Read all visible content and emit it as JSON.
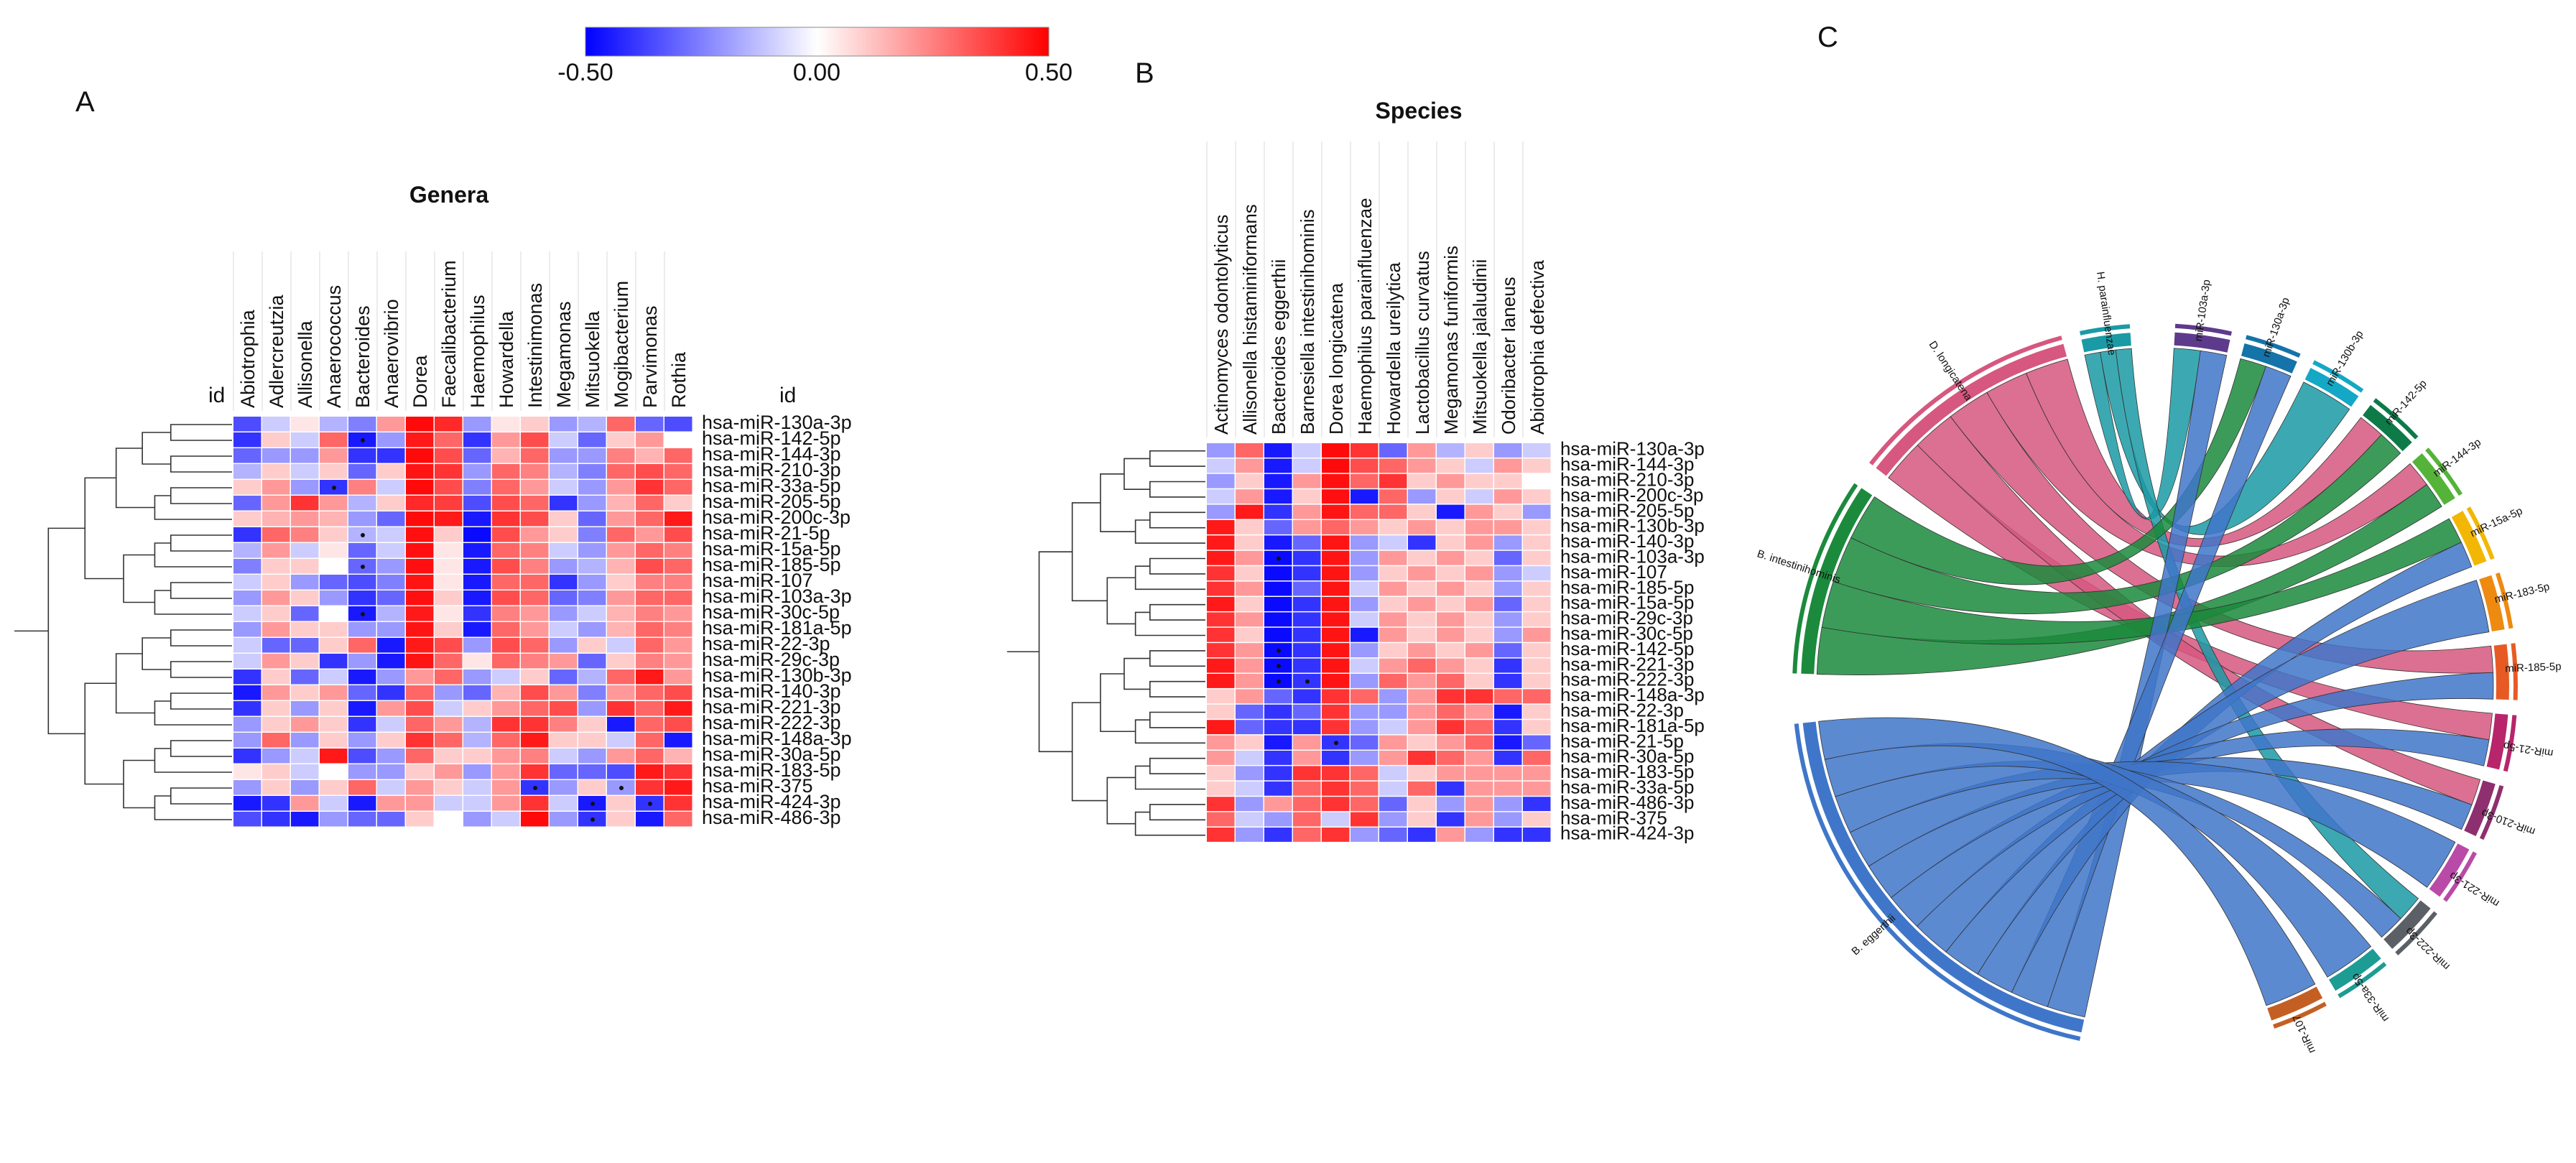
{
  "panels": {
    "a": "A",
    "b": "B",
    "c": "C"
  },
  "colorbar": {
    "min_label": "-0.50",
    "mid_label": "0.00",
    "max_label": "0.50",
    "low_color": "#0000ff",
    "mid_color": "#ffffff",
    "high_color": "#ff0000"
  },
  "chart_data": [
    {
      "type": "heatmap",
      "title": "Genera",
      "corner_label": "id",
      "right_corner_label": "id",
      "value_range": [
        -0.5,
        0.5
      ],
      "columns": [
        "Abiotrophia",
        "Adlercreutzia",
        "Allisonella",
        "Anaerococcus",
        "Bacteroides",
        "Anaerovibrio",
        "Dorea",
        "Faecalibacterium",
        "Haemophilus",
        "Howardella",
        "Intestinimonas",
        "Megamonas",
        "Mitsuokella",
        "Mogibacterium",
        "Parvimonas",
        "Rothia"
      ],
      "rows": [
        "hsa-miR-130a-3p",
        "hsa-miR-142-5p",
        "hsa-miR-144-3p",
        "hsa-miR-210-3p",
        "hsa-miR-33a-5p",
        "hsa-miR-205-5p",
        "hsa-miR-200c-3p",
        "hsa-miR-21-5p",
        "hsa-miR-15a-5p",
        "hsa-miR-185-5p",
        "hsa-miR-107",
        "hsa-miR-103a-3p",
        "hsa-miR-30c-5p",
        "hsa-miR-181a-5p",
        "hsa-miR-22-3p",
        "hsa-miR-29c-3p",
        "hsa-miR-130b-3p",
        "hsa-miR-140-3p",
        "hsa-miR-221-3p",
        "hsa-miR-222-3p",
        "hsa-miR-148a-3p",
        "hsa-miR-30a-5p",
        "hsa-miR-183-5p",
        "hsa-miR-375",
        "hsa-miR-424-3p",
        "hsa-miR-486-3p"
      ],
      "values": [
        [
          -0.35,
          -0.1,
          0.05,
          -0.15,
          -0.25,
          0.2,
          0.48,
          0.42,
          -0.2,
          0.05,
          0.1,
          -0.2,
          -0.15,
          0.3,
          -0.3,
          -0.35
        ],
        [
          -0.4,
          0.1,
          -0.1,
          0.3,
          -0.45,
          -0.2,
          0.45,
          0.3,
          -0.4,
          0.2,
          0.35,
          -0.1,
          -0.3,
          0.1,
          0.2,
          0.0
        ],
        [
          -0.3,
          -0.2,
          -0.2,
          0.2,
          -0.4,
          -0.4,
          0.48,
          0.35,
          -0.3,
          0.15,
          0.3,
          -0.2,
          -0.2,
          0.25,
          0.15,
          0.3
        ],
        [
          -0.15,
          0.1,
          -0.1,
          0.1,
          -0.3,
          0.1,
          0.46,
          0.4,
          -0.2,
          0.3,
          0.25,
          -0.15,
          -0.25,
          0.3,
          0.35,
          0.3
        ],
        [
          0.1,
          0.2,
          -0.2,
          -0.4,
          0.25,
          -0.1,
          0.48,
          0.35,
          -0.25,
          0.3,
          0.2,
          -0.1,
          -0.2,
          0.2,
          0.4,
          0.3
        ],
        [
          -0.3,
          0.2,
          0.4,
          0.2,
          -0.15,
          0.1,
          0.42,
          0.38,
          -0.35,
          0.35,
          0.3,
          -0.4,
          -0.2,
          0.15,
          0.3,
          0.1
        ],
        [
          0.1,
          0.15,
          0.2,
          0.15,
          -0.2,
          -0.3,
          0.48,
          0.45,
          -0.45,
          0.4,
          0.35,
          0.1,
          -0.3,
          0.2,
          0.3,
          0.45
        ],
        [
          -0.4,
          0.3,
          0.25,
          0.1,
          -0.15,
          -0.1,
          0.47,
          0.1,
          -0.48,
          0.35,
          0.2,
          0.1,
          -0.25,
          0.3,
          0.2,
          0.35
        ],
        [
          -0.15,
          0.2,
          -0.1,
          0.05,
          -0.3,
          -0.1,
          0.47,
          0.05,
          -0.45,
          0.3,
          0.25,
          -0.1,
          -0.2,
          0.2,
          0.3,
          0.25
        ],
        [
          -0.25,
          0.1,
          0.1,
          0.0,
          -0.3,
          -0.2,
          0.47,
          0.05,
          -0.45,
          0.35,
          0.25,
          -0.2,
          -0.15,
          0.15,
          0.35,
          0.3
        ],
        [
          -0.1,
          0.1,
          -0.2,
          -0.3,
          -0.35,
          -0.25,
          0.46,
          0.05,
          -0.45,
          0.3,
          0.3,
          -0.4,
          -0.2,
          0.1,
          0.25,
          0.25
        ],
        [
          -0.2,
          0.2,
          0.1,
          -0.2,
          -0.4,
          -0.3,
          0.47,
          0.1,
          -0.45,
          0.35,
          0.3,
          -0.3,
          -0.25,
          0.2,
          0.3,
          0.3
        ],
        [
          -0.1,
          0.1,
          -0.3,
          0.0,
          -0.45,
          -0.15,
          0.45,
          0.05,
          -0.4,
          0.25,
          0.2,
          -0.2,
          -0.1,
          0.15,
          0.25,
          0.2
        ],
        [
          -0.2,
          0.2,
          0.1,
          0.1,
          -0.2,
          -0.2,
          0.46,
          0.1,
          -0.45,
          0.3,
          0.2,
          -0.1,
          -0.2,
          0.15,
          0.3,
          0.25
        ],
        [
          -0.1,
          -0.3,
          -0.3,
          0.1,
          0.3,
          -0.45,
          0.45,
          0.35,
          -0.2,
          0.35,
          0.3,
          -0.2,
          0.1,
          -0.1,
          0.3,
          0.2
        ],
        [
          -0.1,
          0.2,
          0.1,
          -0.4,
          -0.2,
          -0.45,
          0.46,
          0.3,
          0.05,
          0.3,
          0.25,
          0.2,
          -0.3,
          0.1,
          0.25,
          0.2
        ],
        [
          -0.4,
          0.1,
          -0.3,
          -0.1,
          -0.45,
          -0.2,
          0.2,
          0.3,
          -0.2,
          -0.1,
          0.1,
          -0.3,
          -0.15,
          0.3,
          0.45,
          0.2
        ],
        [
          -0.45,
          0.2,
          0.1,
          0.2,
          -0.3,
          -0.4,
          0.3,
          -0.2,
          -0.3,
          0.15,
          0.35,
          0.2,
          -0.25,
          0.2,
          0.3,
          0.35
        ],
        [
          -0.4,
          0.1,
          -0.2,
          0.1,
          -0.45,
          0.2,
          0.35,
          -0.1,
          0.1,
          0.2,
          0.3,
          0.35,
          -0.2,
          0.4,
          0.3,
          0.45
        ],
        [
          -0.2,
          0.1,
          0.2,
          0.1,
          -0.4,
          -0.1,
          0.3,
          0.2,
          -0.15,
          0.4,
          0.4,
          0.25,
          0.1,
          -0.45,
          0.3,
          0.35
        ],
        [
          -0.2,
          0.3,
          -0.2,
          0.1,
          -0.2,
          0.1,
          0.4,
          0.3,
          -0.15,
          0.3,
          0.45,
          0.1,
          0.1,
          -0.1,
          0.3,
          -0.45
        ],
        [
          -0.4,
          -0.2,
          -0.1,
          0.45,
          -0.35,
          -0.2,
          0.3,
          0.1,
          0.1,
          0.2,
          0.25,
          -0.1,
          -0.2,
          0.2,
          0.3,
          0.15
        ],
        [
          0.05,
          0.1,
          -0.1,
          0.0,
          -0.2,
          -0.2,
          0.1,
          0.2,
          -0.2,
          0.2,
          0.4,
          -0.3,
          -0.3,
          -0.35,
          0.45,
          0.4
        ],
        [
          -0.2,
          0.1,
          -0.2,
          0.1,
          0.3,
          -0.1,
          0.2,
          0.1,
          -0.1,
          0.2,
          -0.4,
          -0.2,
          0.1,
          -0.2,
          0.4,
          0.45
        ],
        [
          -0.45,
          -0.4,
          0.2,
          -0.1,
          -0.45,
          0.2,
          0.2,
          -0.1,
          -0.1,
          0.2,
          0.4,
          -0.1,
          -0.45,
          0.1,
          -0.4,
          0.4
        ],
        [
          -0.35,
          -0.4,
          -0.45,
          -0.2,
          -0.3,
          -0.3,
          0.1,
          0.0,
          -0.2,
          -0.1,
          0.48,
          -0.2,
          -0.4,
          0.1,
          -0.45,
          0.3
        ]
      ],
      "significant": [
        [
          1,
          4
        ],
        [
          4,
          3
        ],
        [
          7,
          4
        ],
        [
          9,
          4
        ],
        [
          12,
          4
        ],
        [
          23,
          10
        ],
        [
          23,
          13
        ],
        [
          24,
          12
        ],
        [
          24,
          14
        ],
        [
          25,
          12
        ]
      ]
    },
    {
      "type": "heatmap",
      "title": "Species",
      "value_range": [
        -0.5,
        0.5
      ],
      "columns": [
        "Actinomyces odontolyticus",
        "Allisonella histaminiformans",
        "Bacteroides eggerthii",
        "Barnesiella intestinihominis",
        "Dorea longicatena",
        "Haemophilus parainfluenzae",
        "Howardella ureilytica",
        "Lactobacillus curvatus",
        "Megamonas funiformis",
        "Mitsuokella jalaludinii",
        "Odoribacter laneus",
        "Abiotrophia defectiva"
      ],
      "rows": [
        "hsa-miR-130a-3p",
        "hsa-miR-144-3p",
        "hsa-miR-210-3p",
        "hsa-miR-200c-3p",
        "hsa-miR-205-5p",
        "hsa-miR-130b-3p",
        "hsa-miR-140-3p",
        "hsa-miR-103a-3p",
        "hsa-miR-107",
        "hsa-miR-185-5p",
        "hsa-miR-15a-5p",
        "hsa-miR-29c-3p",
        "hsa-miR-30c-5p",
        "hsa-miR-142-5p",
        "hsa-miR-221-3p",
        "hsa-miR-222-3p",
        "hsa-miR-148a-3p",
        "hsa-miR-22-3p",
        "hsa-miR-181a-5p",
        "hsa-miR-21-5p",
        "hsa-miR-30a-5p",
        "hsa-miR-183-5p",
        "hsa-miR-33a-5p",
        "hsa-miR-486-3p",
        "hsa-miR-375",
        "hsa-miR-424-3p"
      ],
      "values": [
        [
          -0.2,
          0.3,
          -0.45,
          -0.1,
          0.48,
          0.4,
          -0.3,
          0.2,
          -0.15,
          0.1,
          -0.2,
          -0.1
        ],
        [
          -0.1,
          0.2,
          -0.45,
          -0.1,
          0.48,
          0.35,
          0.3,
          0.2,
          0.1,
          -0.1,
          0.2,
          0.1
        ],
        [
          -0.2,
          0.1,
          -0.45,
          0.2,
          0.47,
          0.3,
          0.4,
          0.1,
          0.2,
          0.1,
          0.1,
          0.0
        ],
        [
          -0.1,
          0.2,
          -0.45,
          0.1,
          0.47,
          -0.45,
          0.3,
          -0.2,
          0.1,
          -0.1,
          0.2,
          0.1
        ],
        [
          -0.2,
          0.45,
          -0.4,
          0.2,
          0.46,
          0.3,
          0.3,
          0.1,
          -0.45,
          0.2,
          0.1,
          -0.2
        ],
        [
          0.45,
          0.1,
          -0.3,
          0.2,
          0.3,
          0.2,
          0.1,
          0.2,
          0.1,
          0.2,
          0.2,
          0.1
        ],
        [
          0.45,
          0.1,
          -0.45,
          -0.3,
          0.46,
          -0.2,
          -0.1,
          -0.4,
          0.1,
          0.2,
          -0.2,
          0.1
        ],
        [
          0.45,
          0.2,
          -0.48,
          -0.4,
          0.46,
          -0.2,
          0.2,
          0.1,
          0.2,
          0.1,
          -0.3,
          0.1
        ],
        [
          0.4,
          0.1,
          -0.48,
          -0.4,
          0.46,
          -0.2,
          0.1,
          0.2,
          0.1,
          0.2,
          -0.2,
          -0.1
        ],
        [
          0.4,
          0.2,
          -0.48,
          -0.3,
          0.46,
          -0.1,
          0.2,
          0.1,
          0.2,
          0.1,
          -0.2,
          0.1
        ],
        [
          0.45,
          0.1,
          -0.48,
          -0.4,
          0.46,
          -0.2,
          0.1,
          0.2,
          0.1,
          0.2,
          -0.3,
          0.1
        ],
        [
          0.4,
          0.2,
          -0.48,
          -0.4,
          0.46,
          -0.1,
          0.2,
          0.1,
          0.2,
          0.1,
          -0.2,
          0.1
        ],
        [
          0.4,
          0.1,
          -0.48,
          -0.4,
          0.46,
          -0.45,
          0.2,
          0.1,
          0.2,
          0.1,
          -0.2,
          0.2
        ],
        [
          0.4,
          0.2,
          -0.48,
          -0.4,
          0.46,
          -0.2,
          0.1,
          0.2,
          0.1,
          0.2,
          -0.3,
          0.1
        ],
        [
          0.45,
          0.2,
          -0.48,
          -0.4,
          0.46,
          -0.1,
          0.2,
          0.3,
          0.2,
          0.1,
          -0.4,
          0.1
        ],
        [
          0.45,
          0.2,
          -0.48,
          -0.4,
          0.46,
          -0.2,
          0.3,
          0.2,
          0.3,
          0.1,
          -0.4,
          0.1
        ],
        [
          0.1,
          0.2,
          -0.3,
          -0.4,
          0.4,
          0.3,
          -0.2,
          0.2,
          0.4,
          0.4,
          0.3,
          0.3
        ],
        [
          0.1,
          -0.3,
          -0.4,
          -0.3,
          0.4,
          -0.2,
          -0.2,
          0.2,
          0.3,
          0.2,
          -0.45,
          0.1
        ],
        [
          0.45,
          -0.3,
          -0.4,
          -0.4,
          0.4,
          -0.2,
          -0.1,
          0.2,
          0.4,
          0.3,
          -0.4,
          0.1
        ],
        [
          0.2,
          0.1,
          -0.45,
          0.2,
          -0.4,
          -0.3,
          0.2,
          0.1,
          0.2,
          0.3,
          -0.45,
          -0.3
        ],
        [
          0.2,
          -0.1,
          -0.4,
          0.2,
          -0.4,
          -0.2,
          0.2,
          0.4,
          0.3,
          0.2,
          -0.4,
          0.3
        ],
        [
          0.1,
          -0.2,
          -0.4,
          0.4,
          0.4,
          0.3,
          -0.1,
          0.1,
          0.2,
          0.2,
          0.2,
          0.2
        ],
        [
          0.1,
          -0.1,
          -0.4,
          0.3,
          0.4,
          0.3,
          -0.1,
          0.3,
          -0.4,
          0.2,
          0.2,
          0.2
        ],
        [
          0.4,
          -0.2,
          0.2,
          0.3,
          0.4,
          0.3,
          -0.3,
          0.1,
          -0.2,
          0.2,
          -0.2,
          -0.4
        ],
        [
          0.3,
          -0.1,
          -0.2,
          0.3,
          -0.1,
          0.4,
          -0.2,
          0.1,
          -0.4,
          0.2,
          -0.2,
          0.1
        ],
        [
          0.4,
          -0.2,
          -0.4,
          0.3,
          0.4,
          -0.2,
          -0.3,
          -0.4,
          0.2,
          -0.2,
          -0.4,
          -0.4
        ]
      ],
      "significant": [
        [
          7,
          2
        ],
        [
          13,
          2
        ],
        [
          14,
          2
        ],
        [
          15,
          2
        ],
        [
          15,
          3
        ],
        [
          19,
          4
        ]
      ]
    },
    {
      "type": "chord",
      "title": "",
      "bacteria": [
        {
          "name": "D. longicatena",
          "color": "#d6577f"
        },
        {
          "name": "H. parainfluenzae",
          "color": "#1a9aa5"
        },
        {
          "name": "B. intestinihominis",
          "color": "#1b8a3c"
        },
        {
          "name": "B. eggerthii",
          "color": "#3f76c9"
        }
      ],
      "mirnas": [
        {
          "name": "miR-103a-3p",
          "color": "#5e3a8c"
        },
        {
          "name": "miR-130a-3p",
          "color": "#1473a8"
        },
        {
          "name": "miR-130b-3p",
          "color": "#14a7c6"
        },
        {
          "name": "miR-142-5p",
          "color": "#0d7a48"
        },
        {
          "name": "miR-144-3p",
          "color": "#55b33a"
        },
        {
          "name": "miR-15a-5p",
          "color": "#f2b705"
        },
        {
          "name": "miR-183-5p",
          "color": "#ee8a0f"
        },
        {
          "name": "miR-185-5p",
          "color": "#e85a24"
        },
        {
          "name": "miR-21-5p",
          "color": "#b8256b"
        },
        {
          "name": "miR-210-3p",
          "color": "#8e2f6f"
        },
        {
          "name": "miR-221-3p",
          "color": "#b94aa7"
        },
        {
          "name": "miR-222-3p",
          "color": "#5b5f66"
        },
        {
          "name": "miR-33a-5p",
          "color": "#1c9c93"
        },
        {
          "name": "miR-107",
          "color": "#c45f24"
        }
      ],
      "links": [
        [
          "D. longicatena",
          "miR-21-5p"
        ],
        [
          "D. longicatena",
          "miR-210-3p"
        ],
        [
          "D. longicatena",
          "miR-185-5p"
        ],
        [
          "D. longicatena",
          "miR-144-3p"
        ],
        [
          "D. longicatena",
          "miR-142-5p"
        ],
        [
          "H. parainfluenzae",
          "miR-103a-3p"
        ],
        [
          "H. parainfluenzae",
          "miR-130b-3p"
        ],
        [
          "H. parainfluenzae",
          "miR-222-3p"
        ],
        [
          "B. intestinihominis",
          "miR-144-3p"
        ],
        [
          "B. intestinihominis",
          "miR-15a-5p"
        ],
        [
          "B. intestinihominis",
          "miR-142-5p"
        ],
        [
          "B. intestinihominis",
          "miR-130a-3p"
        ],
        [
          "B. eggerthii",
          "miR-103a-3p"
        ],
        [
          "B. eggerthii",
          "miR-130a-3p"
        ],
        [
          "B. eggerthii",
          "miR-15a-5p"
        ],
        [
          "B. eggerthii",
          "miR-183-5p"
        ],
        [
          "B. eggerthii",
          "miR-185-5p"
        ],
        [
          "B. eggerthii",
          "miR-21-5p"
        ],
        [
          "B. eggerthii",
          "miR-210-3p"
        ],
        [
          "B. eggerthii",
          "miR-221-3p"
        ],
        [
          "B. eggerthii",
          "miR-222-3p"
        ],
        [
          "B. eggerthii",
          "miR-33a-5p"
        ],
        [
          "B. eggerthii",
          "miR-107"
        ]
      ]
    }
  ]
}
